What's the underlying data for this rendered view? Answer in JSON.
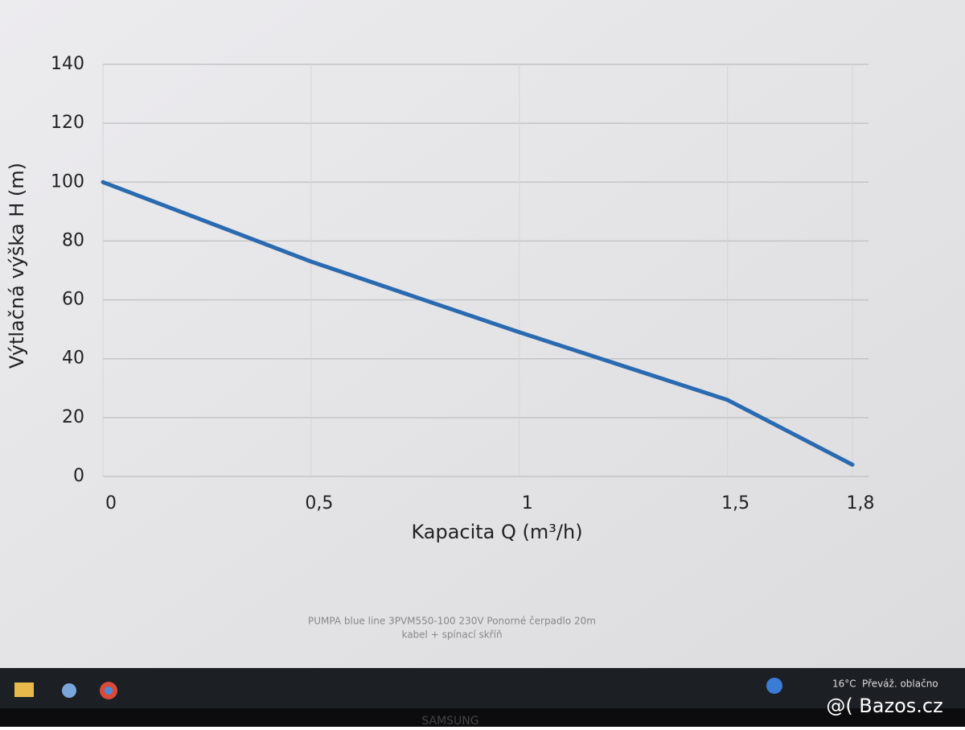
{
  "chart_data": {
    "type": "line",
    "y_label": "Výtlačná výška H (m)",
    "x_label": "Kapacita Q (m³/h)",
    "x": [
      0,
      0.5,
      1,
      1.5,
      1.8
    ],
    "series": [
      {
        "name": "3PVM550-100",
        "color": "#2a6ab0",
        "values": [
          100,
          73,
          49,
          26,
          4
        ]
      }
    ],
    "xlim": [
      0,
      1.8
    ],
    "ylim": [
      0,
      140
    ],
    "xticks": [
      0,
      {
        "value": 0.5,
        "label": "0,5"
      },
      1,
      {
        "value": 1.5,
        "label": "1,5"
      },
      {
        "value": 1.8,
        "label": "1,8"
      }
    ],
    "yticks": [
      0,
      20,
      40,
      60,
      80,
      100,
      120,
      140
    ],
    "grid": true
  },
  "caption": [
    "PUMPA blue line 3PVM550-100 230V Ponorné čerpadlo 20m",
    "kabel + spínací skříň"
  ],
  "taskbar": {
    "temperature": "16°C",
    "weather": "Převáž. oblačno"
  },
  "brand": "SAMSUNG",
  "watermark": "@( Bazos.cz"
}
